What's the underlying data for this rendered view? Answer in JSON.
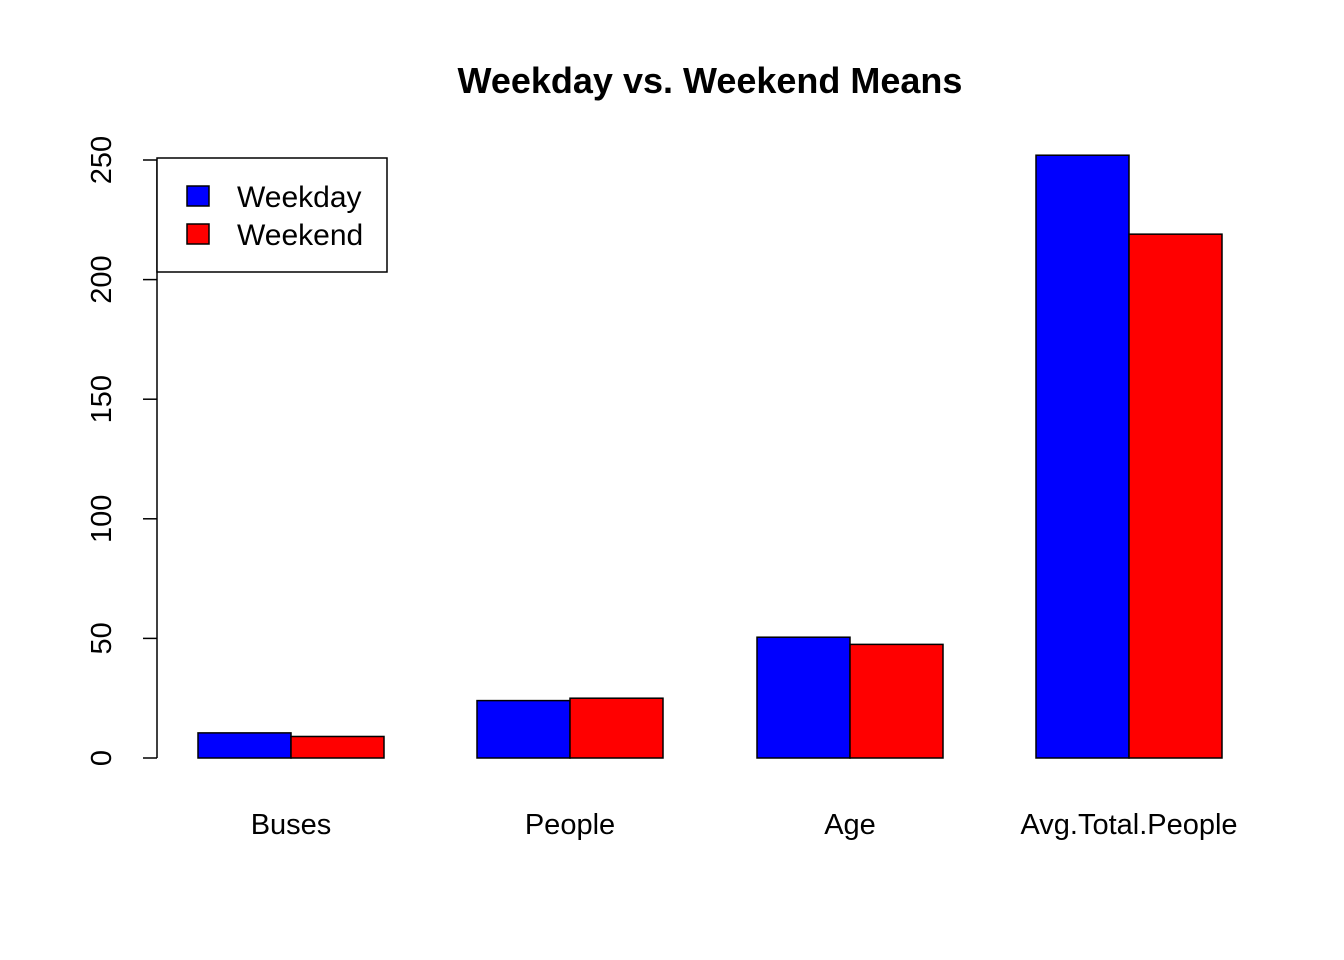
{
  "chart_data": {
    "type": "bar",
    "title": "Weekday vs. Weekend Means",
    "xlabel": "",
    "ylabel": "",
    "categories": [
      "Buses",
      "People",
      "Age",
      "Avg.Total.People"
    ],
    "series": [
      {
        "name": "Weekday",
        "color": "#0000ff",
        "values": [
          10.5,
          24,
          50.5,
          252
        ]
      },
      {
        "name": "Weekend",
        "color": "#ff0000",
        "values": [
          9,
          25,
          47.5,
          219
        ]
      }
    ],
    "ylim": [
      0,
      250
    ],
    "yticks": [
      0,
      50,
      100,
      150,
      200,
      250
    ],
    "legend_position": "top-left",
    "grid": false
  }
}
